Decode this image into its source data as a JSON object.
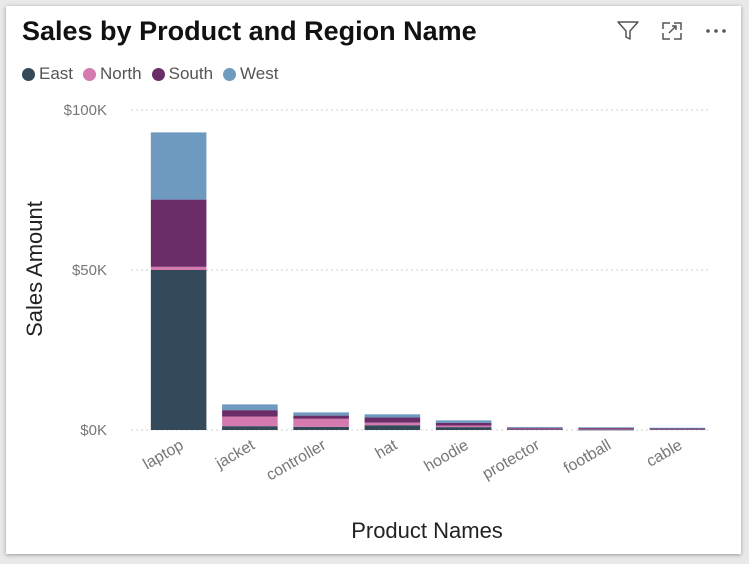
{
  "title": "Sales by Product and Region Name",
  "toolbar": {
    "filter_icon": "filter-icon",
    "focus_icon": "focus-mode-icon",
    "more_icon": "more-options-icon"
  },
  "legend": [
    {
      "name": "East",
      "color": "#34495a"
    },
    {
      "name": "North",
      "color": "#d47ab0"
    },
    {
      "name": "South",
      "color": "#6b2d68"
    },
    {
      "name": "West",
      "color": "#6f9ac0"
    }
  ],
  "chart_data": {
    "type": "bar",
    "stacked": true,
    "xlabel": "Product Names",
    "ylabel": "Sales Amount",
    "ylim": [
      0,
      100000
    ],
    "yticks": [
      0,
      50000,
      100000
    ],
    "ytick_labels": [
      "$0K",
      "$50K",
      "$100K"
    ],
    "grid": true,
    "legend_position": "top-left",
    "categories": [
      "laptop",
      "jacket",
      "controller",
      "hat",
      "hoodie",
      "protector",
      "football",
      "cable"
    ],
    "series": [
      {
        "name": "East",
        "values": [
          50000,
          1200,
          1000,
          1500,
          900,
          300,
          150,
          250
        ]
      },
      {
        "name": "North",
        "values": [
          1000,
          3000,
          2500,
          800,
          500,
          150,
          400,
          100
        ]
      },
      {
        "name": "South",
        "values": [
          21000,
          2000,
          1000,
          1600,
          800,
          250,
          100,
          150
        ]
      },
      {
        "name": "West",
        "values": [
          21000,
          1800,
          1000,
          1000,
          800,
          250,
          200,
          200
        ]
      }
    ]
  }
}
